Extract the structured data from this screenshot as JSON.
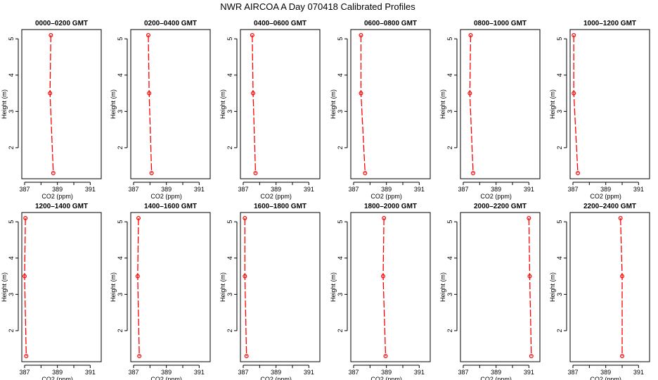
{
  "figure": {
    "title": "NWR AIRCOA A  Day 070418  Calibrated Profiles"
  },
  "colors": {
    "series": "#ff0000",
    "axes": "#000000",
    "background": "#ffffff"
  },
  "chart_data": {
    "type": "line",
    "grid": false,
    "layout": "2 rows x 6 panels",
    "xlabel": "CO2 (ppm)",
    "ylabel": "Height (m)",
    "xlim": [
      387,
      391.5
    ],
    "ylim": [
      1.3,
      5.1
    ],
    "xticks": [
      387,
      389,
      391
    ],
    "yticks": [
      2,
      3,
      4,
      5
    ],
    "heights": [
      5.1,
      3.5,
      1.3
    ],
    "panels": [
      {
        "title": "0000–0200 GMT",
        "co2": [
          388.6,
          388.55,
          388.75
        ]
      },
      {
        "title": "0200–0400 GMT",
        "co2": [
          387.9,
          387.95,
          388.1
        ]
      },
      {
        "title": "0400–0600 GMT",
        "co2": [
          387.55,
          387.6,
          387.75
        ]
      },
      {
        "title": "0600–0800 GMT",
        "co2": [
          387.45,
          387.45,
          387.7
        ]
      },
      {
        "title": "0800–1000 GMT",
        "co2": [
          387.45,
          387.4,
          387.6
        ]
      },
      {
        "title": "1000–1200 GMT",
        "co2": [
          387.05,
          387.05,
          387.3
        ]
      },
      {
        "title": "1200–1400 GMT",
        "co2": [
          387.05,
          387.0,
          387.1
        ]
      },
      {
        "title": "1400–1600 GMT",
        "co2": [
          387.3,
          387.25,
          387.35
        ]
      },
      {
        "title": "1600–1800 GMT",
        "co2": [
          387.1,
          387.1,
          387.2
        ]
      },
      {
        "title": "1800–2000 GMT",
        "co2": [
          388.85,
          388.8,
          388.95
        ]
      },
      {
        "title": "2000–2200 GMT",
        "co2": [
          391.0,
          391.05,
          391.15
        ]
      },
      {
        "title": "2200–2400 GMT",
        "co2": [
          389.9,
          390.0,
          390.0
        ]
      }
    ]
  }
}
